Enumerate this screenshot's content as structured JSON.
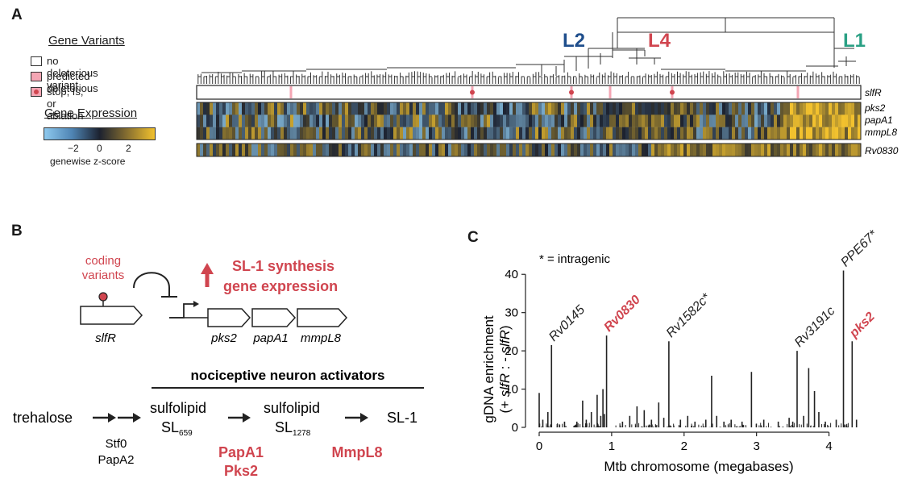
{
  "panels": {
    "a": "A",
    "b": "B",
    "c": "C"
  },
  "legend": {
    "variants_title": "Gene Variants",
    "variant_items": [
      {
        "label": "no deleterious variant",
        "color": "#ffffff"
      },
      {
        "label": "predicted deleterious",
        "color": "#f4a6b4"
      },
      {
        "label": "stop, fs, or ablation",
        "color": "#f4a6b4"
      }
    ],
    "expression_title": "Gene Expression",
    "colorbar_ticks": [
      "−2",
      "0",
      "2"
    ],
    "colorbar_label": "genewise z-score",
    "colors": {
      "low": "#8ec9ee",
      "mid": "#1c2230",
      "high": "#f2c12e"
    }
  },
  "tree": {
    "lineages": [
      {
        "label": "L2",
        "color": "#1f4e8c"
      },
      {
        "label": "L4",
        "color": "#d0454f"
      },
      {
        "label": "L1",
        "color": "#2aa084"
      }
    ]
  },
  "heatmap": {
    "variant_row": "slfR",
    "expression_rows": [
      "pks2",
      "papA1",
      "mmpL8"
    ],
    "extra_row": "Rv0830"
  },
  "panel_b": {
    "coding_variants": "coding\nvariants",
    "arrow_text_1": "SL-1 synthesis",
    "arrow_text_2": "gene expression",
    "genes": [
      "slfR",
      "pks2",
      "papA1",
      "mmpL8"
    ],
    "bracket_title": "nociceptive neuron activators",
    "pathway": {
      "trehalose": "trehalose",
      "enz1": "Stf0",
      "enz1b": "PapA2",
      "sulfolipid": "sulfolipid",
      "sl659": "SL",
      "sl659_sub": "659",
      "sl1278": "SL",
      "sl1278_sub": "1278",
      "sl1": "SL-1",
      "enz2a": "PapA1",
      "enz2b": "Pks2",
      "enz3": "MmpL8"
    }
  },
  "chart_data": {
    "type": "bar",
    "title": "",
    "note": "* = intragenic",
    "xlabel": "Mtb chromosome (megabases)",
    "ylabel_1": "gDNA enrichment",
    "ylabel_2_parts": [
      "(+ ",
      "slfR",
      " : - ",
      "slfR",
      ")"
    ],
    "xlim": [
      -0.1,
      4.45
    ],
    "ylim": [
      0,
      43
    ],
    "xticks": [
      0,
      1,
      2,
      3,
      4
    ],
    "yticks": [
      0,
      10,
      20,
      30,
      40
    ],
    "peaks": [
      {
        "x": 0.0,
        "y": 9
      },
      {
        "x": 0.05,
        "y": 2
      },
      {
        "x": 0.12,
        "y": 4
      },
      {
        "x": 0.17,
        "y": 21.5,
        "label": "Rv0145",
        "highlight": false
      },
      {
        "x": 0.35,
        "y": 1.5
      },
      {
        "x": 0.52,
        "y": 1.5
      },
      {
        "x": 0.6,
        "y": 7
      },
      {
        "x": 0.65,
        "y": 2
      },
      {
        "x": 0.72,
        "y": 4
      },
      {
        "x": 0.8,
        "y": 8.5
      },
      {
        "x": 0.85,
        "y": 3
      },
      {
        "x": 0.88,
        "y": 10
      },
      {
        "x": 0.9,
        "y": 3.5
      },
      {
        "x": 0.93,
        "y": 24,
        "label": "Rv0830",
        "highlight": true
      },
      {
        "x": 1.15,
        "y": 1.5
      },
      {
        "x": 1.25,
        "y": 3
      },
      {
        "x": 1.35,
        "y": 5.5
      },
      {
        "x": 1.45,
        "y": 4.5
      },
      {
        "x": 1.55,
        "y": 2
      },
      {
        "x": 1.65,
        "y": 6.5
      },
      {
        "x": 1.72,
        "y": 2.5
      },
      {
        "x": 1.79,
        "y": 22.5,
        "label": "Rv1582c*",
        "highlight": false
      },
      {
        "x": 1.95,
        "y": 2
      },
      {
        "x": 2.05,
        "y": 3
      },
      {
        "x": 2.15,
        "y": 1.5
      },
      {
        "x": 2.3,
        "y": 2
      },
      {
        "x": 2.38,
        "y": 13.5
      },
      {
        "x": 2.45,
        "y": 3
      },
      {
        "x": 2.55,
        "y": 1.5
      },
      {
        "x": 2.65,
        "y": 2
      },
      {
        "x": 2.8,
        "y": 1.5
      },
      {
        "x": 2.93,
        "y": 14.5
      },
      {
        "x": 3.1,
        "y": 2
      },
      {
        "x": 3.3,
        "y": 1.5
      },
      {
        "x": 3.45,
        "y": 2.5
      },
      {
        "x": 3.5,
        "y": 1.5
      },
      {
        "x": 3.56,
        "y": 20,
        "label": "Rv3191c",
        "highlight": false
      },
      {
        "x": 3.65,
        "y": 3
      },
      {
        "x": 3.72,
        "y": 15.5
      },
      {
        "x": 3.8,
        "y": 9.5
      },
      {
        "x": 3.86,
        "y": 4
      },
      {
        "x": 3.95,
        "y": 1.5
      },
      {
        "x": 4.1,
        "y": 2
      },
      {
        "x": 4.2,
        "y": 41,
        "label": "PPE67*",
        "highlight": false
      },
      {
        "x": 4.32,
        "y": 22.5,
        "label": "pks2",
        "highlight": true
      },
      {
        "x": 4.38,
        "y": 2
      }
    ]
  }
}
